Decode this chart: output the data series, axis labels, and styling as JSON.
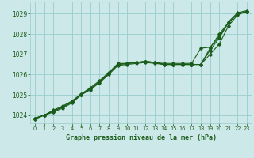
{
  "title": "Graphe pression niveau de la mer (hPa)",
  "bg_color": "#cce8e8",
  "grid_color": "#99cccc",
  "line_color": "#1a5c1a",
  "xlim": [
    -0.5,
    23.5
  ],
  "ylim": [
    1023.6,
    1029.6
  ],
  "yticks": [
    1024,
    1025,
    1026,
    1027,
    1028,
    1029
  ],
  "xticks": [
    0,
    1,
    2,
    3,
    4,
    5,
    6,
    7,
    8,
    9,
    10,
    11,
    12,
    13,
    14,
    15,
    16,
    17,
    18,
    19,
    20,
    21,
    22,
    23
  ],
  "series1": [
    1023.85,
    1024.0,
    1024.2,
    1024.4,
    1024.65,
    1025.0,
    1025.3,
    1025.65,
    1026.05,
    1026.5,
    1026.55,
    1026.6,
    1026.65,
    1026.6,
    1026.5,
    1026.5,
    1026.5,
    1026.5,
    1026.5,
    1027.2,
    1027.8,
    1028.55,
    1029.0,
    1029.1
  ],
  "series2": [
    1023.85,
    1024.0,
    1024.25,
    1024.45,
    1024.7,
    1025.05,
    1025.35,
    1025.7,
    1026.1,
    1026.55,
    1026.55,
    1026.6,
    1026.65,
    1026.6,
    1026.55,
    1026.55,
    1026.55,
    1026.55,
    1027.3,
    1027.35,
    1027.85,
    1028.6,
    1029.05,
    1029.15
  ],
  "series3": [
    1023.8,
    1024.0,
    1024.15,
    1024.35,
    1024.6,
    1025.0,
    1025.25,
    1025.6,
    1026.0,
    1026.45,
    1026.5,
    1026.55,
    1026.6,
    1026.55,
    1026.5,
    1026.5,
    1026.5,
    1026.5,
    1026.5,
    1027.3,
    1028.0,
    1028.55,
    1029.0,
    1029.1
  ],
  "series4": [
    1023.85,
    1024.0,
    1024.2,
    1024.4,
    1024.65,
    1025.0,
    1025.3,
    1025.65,
    1026.05,
    1026.5,
    1026.55,
    1026.6,
    1026.65,
    1026.6,
    1026.5,
    1026.5,
    1026.5,
    1026.5,
    1026.5,
    1027.0,
    1027.5,
    1028.4,
    1028.95,
    1029.1
  ]
}
